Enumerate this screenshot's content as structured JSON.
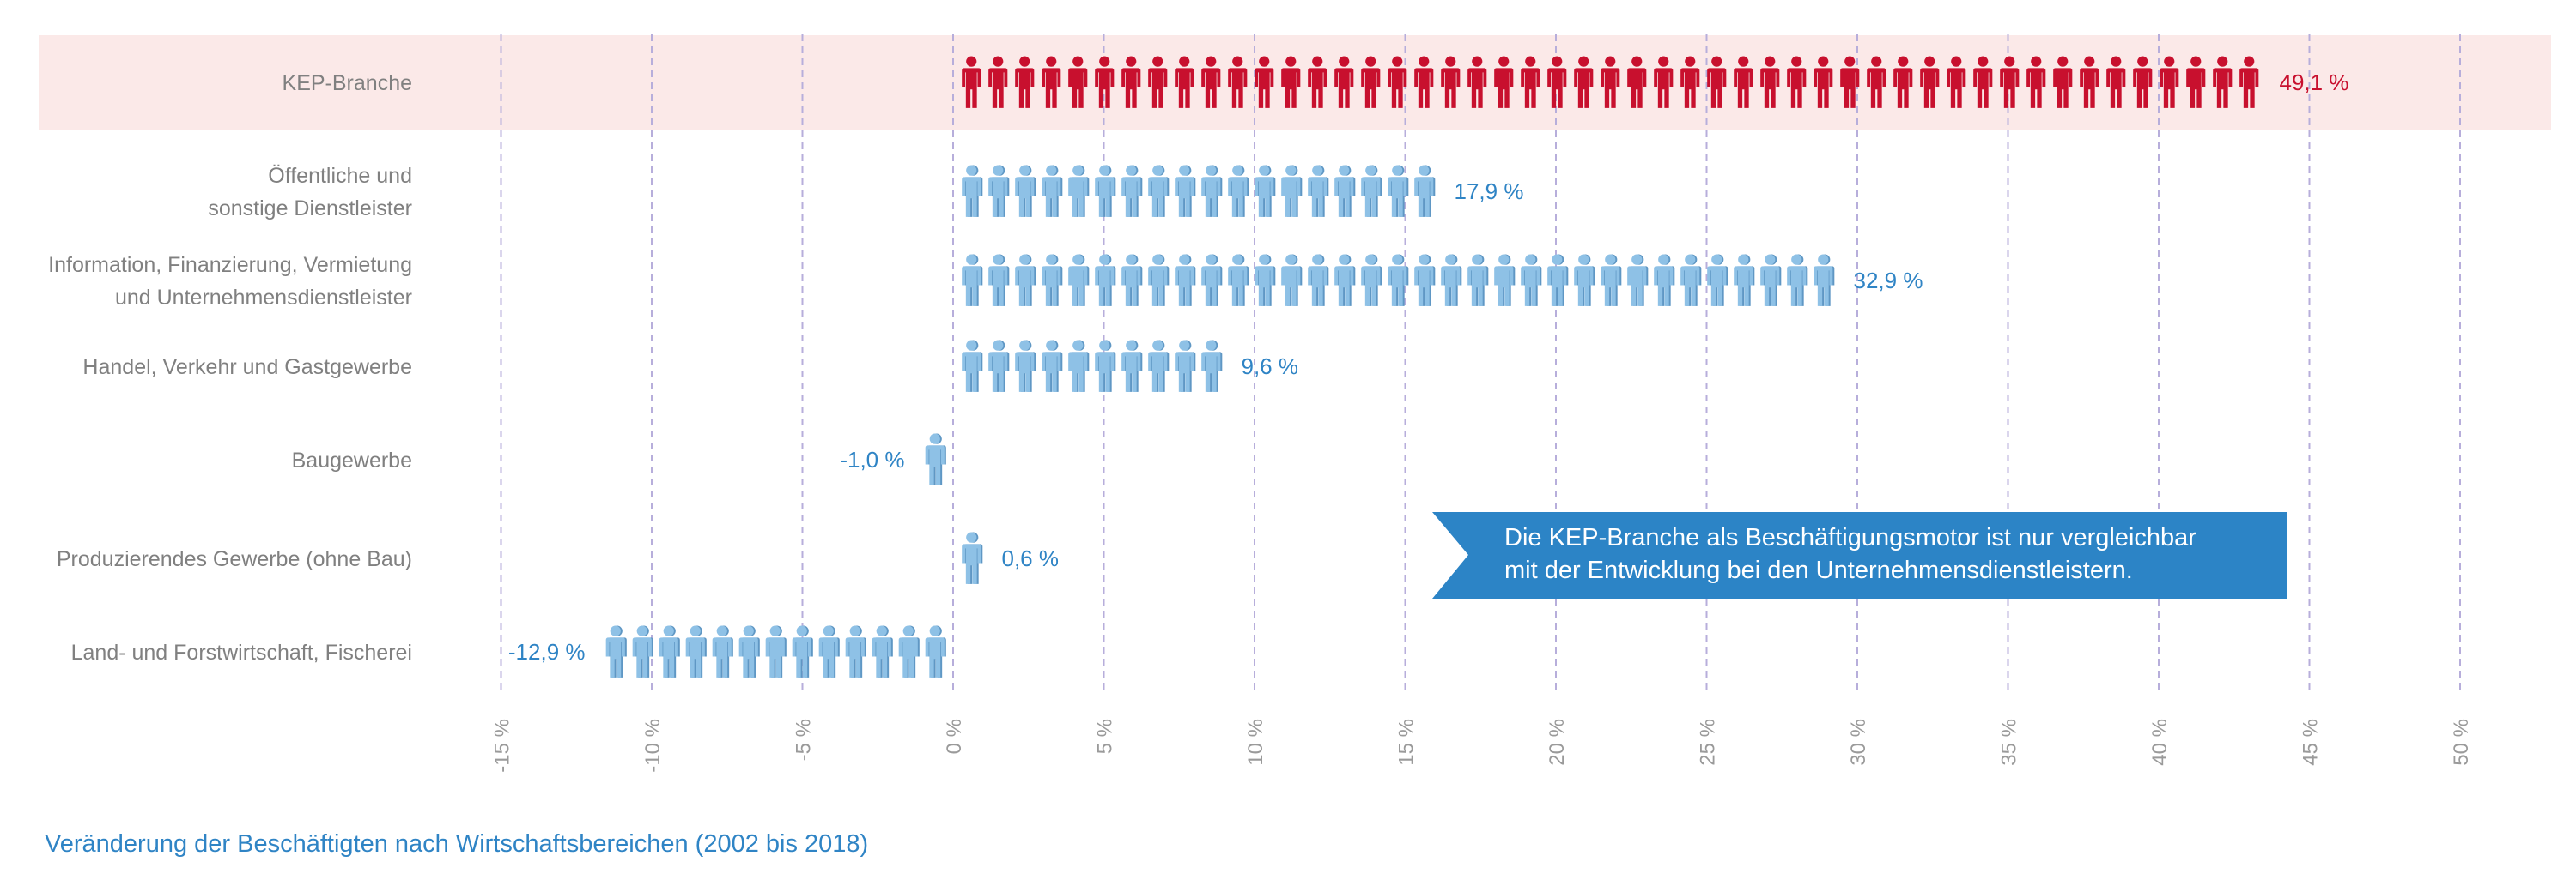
{
  "chart_data": {
    "type": "bar",
    "title": "Veränderung der Beschäftigten nach Wirtschaftsbereichen (2002 bis 2018)",
    "xlabel": "",
    "ylabel": "",
    "xlim": [
      -15,
      50
    ],
    "x_ticks": [
      -15,
      -10,
      -5,
      0,
      5,
      10,
      15,
      20,
      25,
      30,
      35,
      40,
      45,
      50
    ],
    "x_tick_labels": [
      "-15 %",
      "-10 %",
      "-5 %",
      "0 %",
      "5 %",
      "10 %",
      "15 %",
      "20 %",
      "25 %",
      "30 %",
      "35 %",
      "40 %",
      "45 %",
      "50 %"
    ],
    "orientation": "horizontal",
    "grid": true,
    "categories": [
      {
        "name": "kep-branche",
        "lines": [
          "KEP-Branche"
        ],
        "value": 49.1,
        "label": "49,1 %",
        "highlight": true
      },
      {
        "name": "oeffentliche-dienstleister",
        "lines": [
          "Öffentliche und",
          "sonstige Dienstleister"
        ],
        "value": 17.9,
        "label": "17,9 %",
        "highlight": false
      },
      {
        "name": "information-finanzierung",
        "lines": [
          "Information, Finanzierung, Vermietung",
          "und Unternehmensdienstleister"
        ],
        "value": 32.9,
        "label": "32,9 %",
        "highlight": false
      },
      {
        "name": "handel-verkehr",
        "lines": [
          "Handel, Verkehr und Gastgewerbe"
        ],
        "value": 9.6,
        "label": "9,6 %",
        "highlight": false
      },
      {
        "name": "baugewerbe",
        "lines": [
          "Baugewerbe"
        ],
        "value": -1.0,
        "label": "-1,0 %",
        "highlight": false
      },
      {
        "name": "produzierendes-gewerbe",
        "lines": [
          "Produzierendes Gewerbe (ohne Bau)"
        ],
        "value": 0.6,
        "label": "0,6 %",
        "highlight": false
      },
      {
        "name": "land-forstwirtschaft",
        "lines": [
          "Land- und Forstwirtschaft, Fischerei"
        ],
        "value": -12.9,
        "label": "-12,9 %",
        "highlight": false
      }
    ],
    "annotation": {
      "lines": [
        "Die KEP-Branche als Beschäftigungsmotor ist nur vergleichbar",
        "mit der Entwicklung bei den Unternehmensdienstleistern."
      ]
    }
  },
  "colors": {
    "highlight_icon": "#c8102e",
    "highlight_label": "#c8102e",
    "highlight_band": "#fbe9e8",
    "icon": "#8ec1e6",
    "icon_shadow": "#5f97c4",
    "value_label": "#2f84c5",
    "callout_bg": "#2c84c6",
    "caption": "#2f84c5"
  }
}
